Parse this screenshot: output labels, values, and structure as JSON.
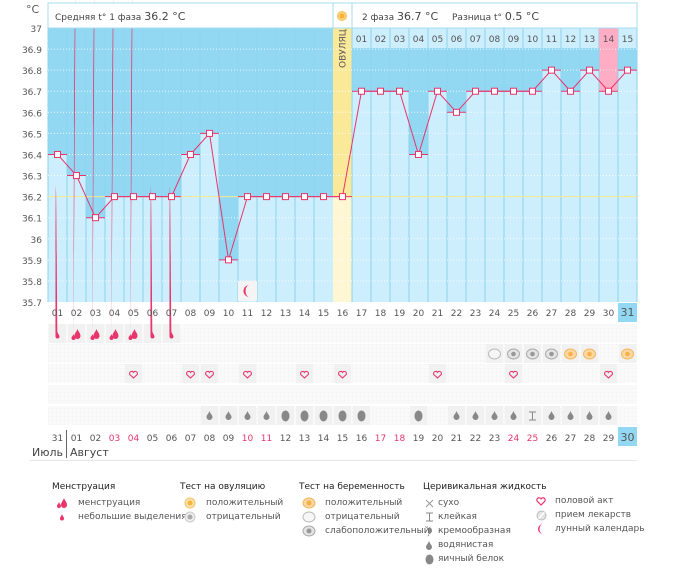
{
  "header": {
    "unit_label": "°C",
    "phase1_label": "Средняя t° 1 фаза",
    "phase1_value": "36.2 °C",
    "phase2_label": "2 фаза",
    "phase2_value": "36.7 °C",
    "diff_label": "Разница t°",
    "diff_value": "0.5 °C",
    "ovulation_label": "ОВУЛЯЦИЯ"
  },
  "colors": {
    "sky": "#93d8f2",
    "bar": "#cdeefc",
    "ovulation": "#fbe99a",
    "ovulation_light": "#fff6d3",
    "line": "#e8356c",
    "cover_line": "#f3e98a",
    "highlight": "#ffadc4",
    "today": "#93d8f2",
    "red_day": "#e8356c"
  },
  "chart_data": {
    "type": "line",
    "title": "",
    "ylabel": "°C",
    "ylim": [
      35.7,
      37.0
    ],
    "yticks": [
      "37",
      "36.9",
      "36.8",
      "36.7",
      "36.6",
      "36.5",
      "36.4",
      "36.3",
      "36.2",
      "36.1",
      "36",
      "35.9",
      "35.8",
      "35.7"
    ],
    "cover_line": 36.2,
    "cycle_days": [
      "01",
      "02",
      "03",
      "04",
      "05",
      "06",
      "07",
      "08",
      "09",
      "10",
      "11",
      "12",
      "13",
      "14",
      "15",
      "16",
      "17",
      "18",
      "19",
      "20",
      "21",
      "22",
      "23",
      "24",
      "25",
      "26",
      "27",
      "28",
      "29",
      "30",
      "31"
    ],
    "post_ovulation_days": [
      "01",
      "02",
      "03",
      "04",
      "05",
      "06",
      "07",
      "08",
      "09",
      "10",
      "11",
      "12",
      "13",
      "14",
      "15"
    ],
    "ovulation_day_index": 15,
    "highlight_post_day": "14",
    "today_cycle_day": "31",
    "series": [
      {
        "name": "BBT",
        "values": [
          36.4,
          36.3,
          36.1,
          36.2,
          36.2,
          36.2,
          36.2,
          36.4,
          36.5,
          35.9,
          36.2,
          36.2,
          36.2,
          36.2,
          36.2,
          36.2,
          36.7,
          36.7,
          36.7,
          36.4,
          36.7,
          36.6,
          36.7,
          36.7,
          36.7,
          36.7,
          36.8,
          36.7,
          36.8,
          36.7,
          36.8
        ]
      }
    ],
    "calendar_dates": [
      "31",
      "01",
      "02",
      "03",
      "04",
      "05",
      "06",
      "07",
      "08",
      "09",
      "10",
      "11",
      "12",
      "13",
      "14",
      "15",
      "16",
      "17",
      "18",
      "19",
      "20",
      "21",
      "22",
      "23",
      "24",
      "25",
      "26",
      "27",
      "28",
      "29",
      "30"
    ],
    "weekend_dates_idx": [
      3,
      4,
      10,
      11,
      17,
      18,
      24,
      25
    ],
    "months": [
      "Июль",
      "Август"
    ],
    "moon_day_index": 10,
    "menstruation": [
      "small",
      "heavy",
      "heavy",
      "heavy",
      "heavy",
      "small",
      "small",
      "",
      "",
      "",
      "",
      "",
      "",
      "",
      "",
      "",
      "",
      "",
      "",
      "",
      "",
      "",
      "",
      "",
      "",
      "",
      "",
      "",
      "",
      "",
      ""
    ],
    "pregnancy_tests": [
      "",
      "",
      "",
      "",
      "",
      "",
      "",
      "",
      "",
      "",
      "",
      "",
      "",
      "",
      "",
      "",
      "",
      "",
      "",
      "",
      "",
      "",
      "",
      "negative",
      "faint",
      "faint",
      "faint",
      "positive",
      "positive",
      "",
      "positive"
    ],
    "intercourse": [
      false,
      false,
      false,
      false,
      true,
      false,
      false,
      true,
      true,
      false,
      true,
      false,
      false,
      true,
      false,
      true,
      false,
      false,
      false,
      false,
      true,
      false,
      false,
      false,
      true,
      false,
      false,
      false,
      false,
      true,
      false
    ],
    "cervical_fluid": [
      "",
      "",
      "",
      "",
      "",
      "",
      "",
      "",
      "watery",
      "watery",
      "watery",
      "watery",
      "eggwhite",
      "eggwhite",
      "eggwhite",
      "eggwhite",
      "eggwhite",
      "",
      "",
      "eggwhite",
      "",
      "watery",
      "watery",
      "watery",
      "watery",
      "sticky",
      "watery",
      "watery",
      "watery",
      "watery",
      ""
    ]
  },
  "legend": {
    "menstruation": {
      "title": "Менструация",
      "items": [
        "менструация",
        "небольшие выделения"
      ]
    },
    "ovulation_test": {
      "title": "Тест на овуляцию",
      "items": [
        "положительный",
        "отрицательный"
      ]
    },
    "pregnancy_test": {
      "title": "Тест на беременность",
      "items": [
        "положительный",
        "отрицательный",
        "слабоположительный"
      ]
    },
    "cervical": {
      "title": "Церивикальная жидкость",
      "items": [
        "сухо",
        "клейкая",
        "кремообразная",
        "водянистая",
        "яичный белок"
      ]
    },
    "other": {
      "items": [
        "половой акт",
        "прием лекарств",
        "лунный календарь"
      ]
    }
  }
}
